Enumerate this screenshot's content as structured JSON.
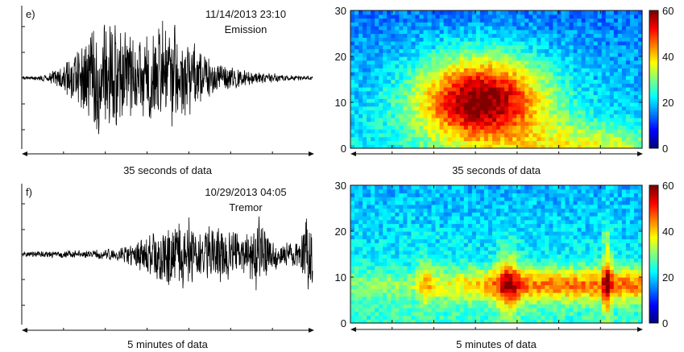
{
  "chart_data": [
    {
      "type": "line",
      "panel_label": "e)",
      "date_label": "11/14/2013 23:10",
      "event_label": "Emission",
      "duration_label": "35 seconds of data",
      "y_ticks_count": 5,
      "envelope_centers": [
        0.27,
        0.53
      ],
      "series": [
        {
          "description": "seismic waveform",
          "amplitude_peak": 1.0
        }
      ]
    },
    {
      "type": "heatmap",
      "duration_label": "35 seconds of data",
      "yticks": [
        "0",
        "10",
        "20",
        "30"
      ],
      "ylim": [
        0,
        30
      ],
      "colorbar": {
        "ticks": [
          "0",
          "20",
          "40",
          "60"
        ],
        "range": [
          0,
          60
        ]
      },
      "pattern": "emission"
    },
    {
      "type": "line",
      "panel_label": "f)",
      "date_label": "10/29/2013 04:05",
      "event_label": "Tremor",
      "duration_label": "5 minutes of data",
      "y_ticks_count": 5,
      "envelope_centers": [
        0.55,
        0.82
      ],
      "series": [
        {
          "description": "seismic waveform",
          "amplitude_peak": 1.0
        }
      ]
    },
    {
      "type": "heatmap",
      "duration_label": "5 minutes of data",
      "yticks": [
        "0",
        "10",
        "20",
        "30"
      ],
      "ylim": [
        0,
        30
      ],
      "colorbar": {
        "ticks": [
          "0",
          "20",
          "40",
          "60"
        ],
        "range": [
          0,
          60
        ]
      },
      "pattern": "tremor"
    }
  ]
}
